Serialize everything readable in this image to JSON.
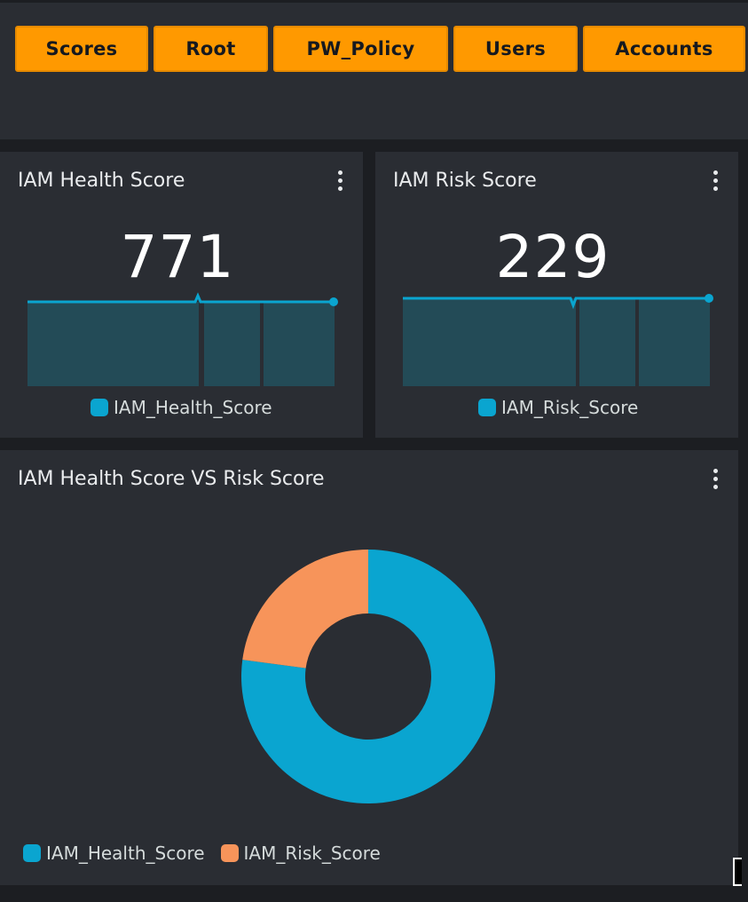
{
  "nav": {
    "buttons": [
      {
        "label": "Scores"
      },
      {
        "label": "Root"
      },
      {
        "label": "PW_Policy"
      },
      {
        "label": "Users"
      },
      {
        "label": "Accounts"
      }
    ]
  },
  "panels": {
    "health": {
      "title": "IAM Health Score",
      "value": "771",
      "legend": "IAM_Health_Score"
    },
    "risk": {
      "title": "IAM Risk Score",
      "value": "229",
      "legend": "IAM_Risk_Score"
    },
    "versus": {
      "title": "IAM Health Score VS Risk Score",
      "legend": [
        "IAM_Health_Score",
        "IAM_Risk_Score"
      ]
    }
  },
  "colors": {
    "accent_button": "#ff9900",
    "series_health": "#0aa5d0",
    "series_risk": "#f7945a",
    "sparkline_fill": "#234b57"
  },
  "icons": {
    "panel_menu": "more-vertical-icon"
  },
  "chart_data": [
    {
      "type": "area",
      "series": [
        {
          "name": "IAM_Health_Score",
          "values": [
            771,
            771,
            771,
            771
          ]
        }
      ]
    },
    {
      "type": "area",
      "series": [
        {
          "name": "IAM_Risk_Score",
          "values": [
            229,
            229,
            229,
            229
          ]
        }
      ]
    },
    {
      "type": "pie",
      "categories": [
        "IAM_Health_Score",
        "IAM_Risk_Score"
      ],
      "values": [
        771,
        229
      ]
    }
  ]
}
